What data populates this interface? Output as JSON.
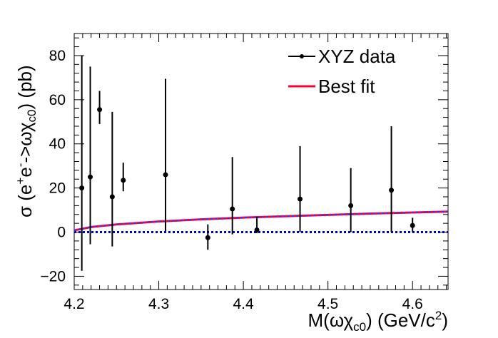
{
  "chart_data": {
    "type": "scatter",
    "xlim": [
      4.2,
      4.642
    ],
    "ylim": [
      -26,
      90
    ],
    "x_ticks": [
      4.2,
      4.3,
      4.4,
      4.5,
      4.6
    ],
    "x_tick_labels": [
      "4.2",
      "4.3",
      "4.4",
      "4.5",
      "4.6"
    ],
    "y_ticks": [
      -20,
      0,
      20,
      40,
      60,
      80
    ],
    "y_tick_labels": [
      "−20",
      "0",
      "20",
      "40",
      "60",
      "80"
    ],
    "grid": false,
    "legend_position": "top-right",
    "legend": [
      {
        "label": "XYZ data",
        "style": "marker-line"
      },
      {
        "label": "Best fit",
        "style": "line"
      }
    ],
    "series": [
      {
        "name": "XYZ data",
        "type": "scatter",
        "color": "#000000",
        "points": [
          {
            "x": 4.209,
            "y": 20.0,
            "ylow": -17.5,
            "yhigh": 80.0
          },
          {
            "x": 4.219,
            "y": 25.0,
            "ylow": -5.5,
            "yhigh": 75.0
          },
          {
            "x": 4.23,
            "y": 55.5,
            "ylow": 49.0,
            "yhigh": 64.0
          },
          {
            "x": 4.245,
            "y": 16.0,
            "ylow": -6.5,
            "yhigh": 54.5
          },
          {
            "x": 4.258,
            "y": 23.5,
            "ylow": 18.5,
            "yhigh": 31.5
          },
          {
            "x": 4.308,
            "y": 26.0,
            "ylow": 0.5,
            "yhigh": 69.5
          },
          {
            "x": 4.358,
            "y": -2.5,
            "ylow": -8.0,
            "yhigh": 3.5
          },
          {
            "x": 4.387,
            "y": 10.5,
            "ylow": -1.0,
            "yhigh": 34.0
          },
          {
            "x": 4.416,
            "y": 1.0,
            "ylow": -0.5,
            "yhigh": 7.0
          },
          {
            "x": 4.467,
            "y": 15.0,
            "ylow": 0.0,
            "yhigh": 39.0
          },
          {
            "x": 4.527,
            "y": 12.0,
            "ylow": 0.0,
            "yhigh": 29.0
          },
          {
            "x": 4.575,
            "y": 19.0,
            "ylow": 0.0,
            "yhigh": 48.0
          },
          {
            "x": 4.6,
            "y": 3.0,
            "ylow": 0.0,
            "yhigh": 6.5
          }
        ]
      },
      {
        "name": "Best fit",
        "type": "line",
        "color": "#ff0033",
        "x": [
          4.2,
          4.22,
          4.25,
          4.3,
          4.35,
          4.4,
          4.45,
          4.5,
          4.55,
          4.6,
          4.642
        ],
        "y": [
          0.8,
          2.3,
          3.5,
          4.8,
          5.8,
          6.6,
          7.2,
          7.8,
          8.4,
          8.9,
          9.3
        ]
      },
      {
        "type": "line",
        "color": "#0000cc",
        "dashed": true,
        "x": [
          4.2,
          4.642
        ],
        "y": [
          0,
          0
        ]
      },
      {
        "type": "line",
        "color": "#3333ff",
        "dashed": true,
        "x": [
          4.2,
          4.22,
          4.25,
          4.3,
          4.35,
          4.4,
          4.45,
          4.5,
          4.55,
          4.6,
          4.642
        ],
        "y": [
          0.8,
          2.3,
          3.5,
          4.8,
          5.8,
          6.6,
          7.2,
          7.8,
          8.4,
          8.9,
          9.3
        ]
      }
    ]
  }
}
